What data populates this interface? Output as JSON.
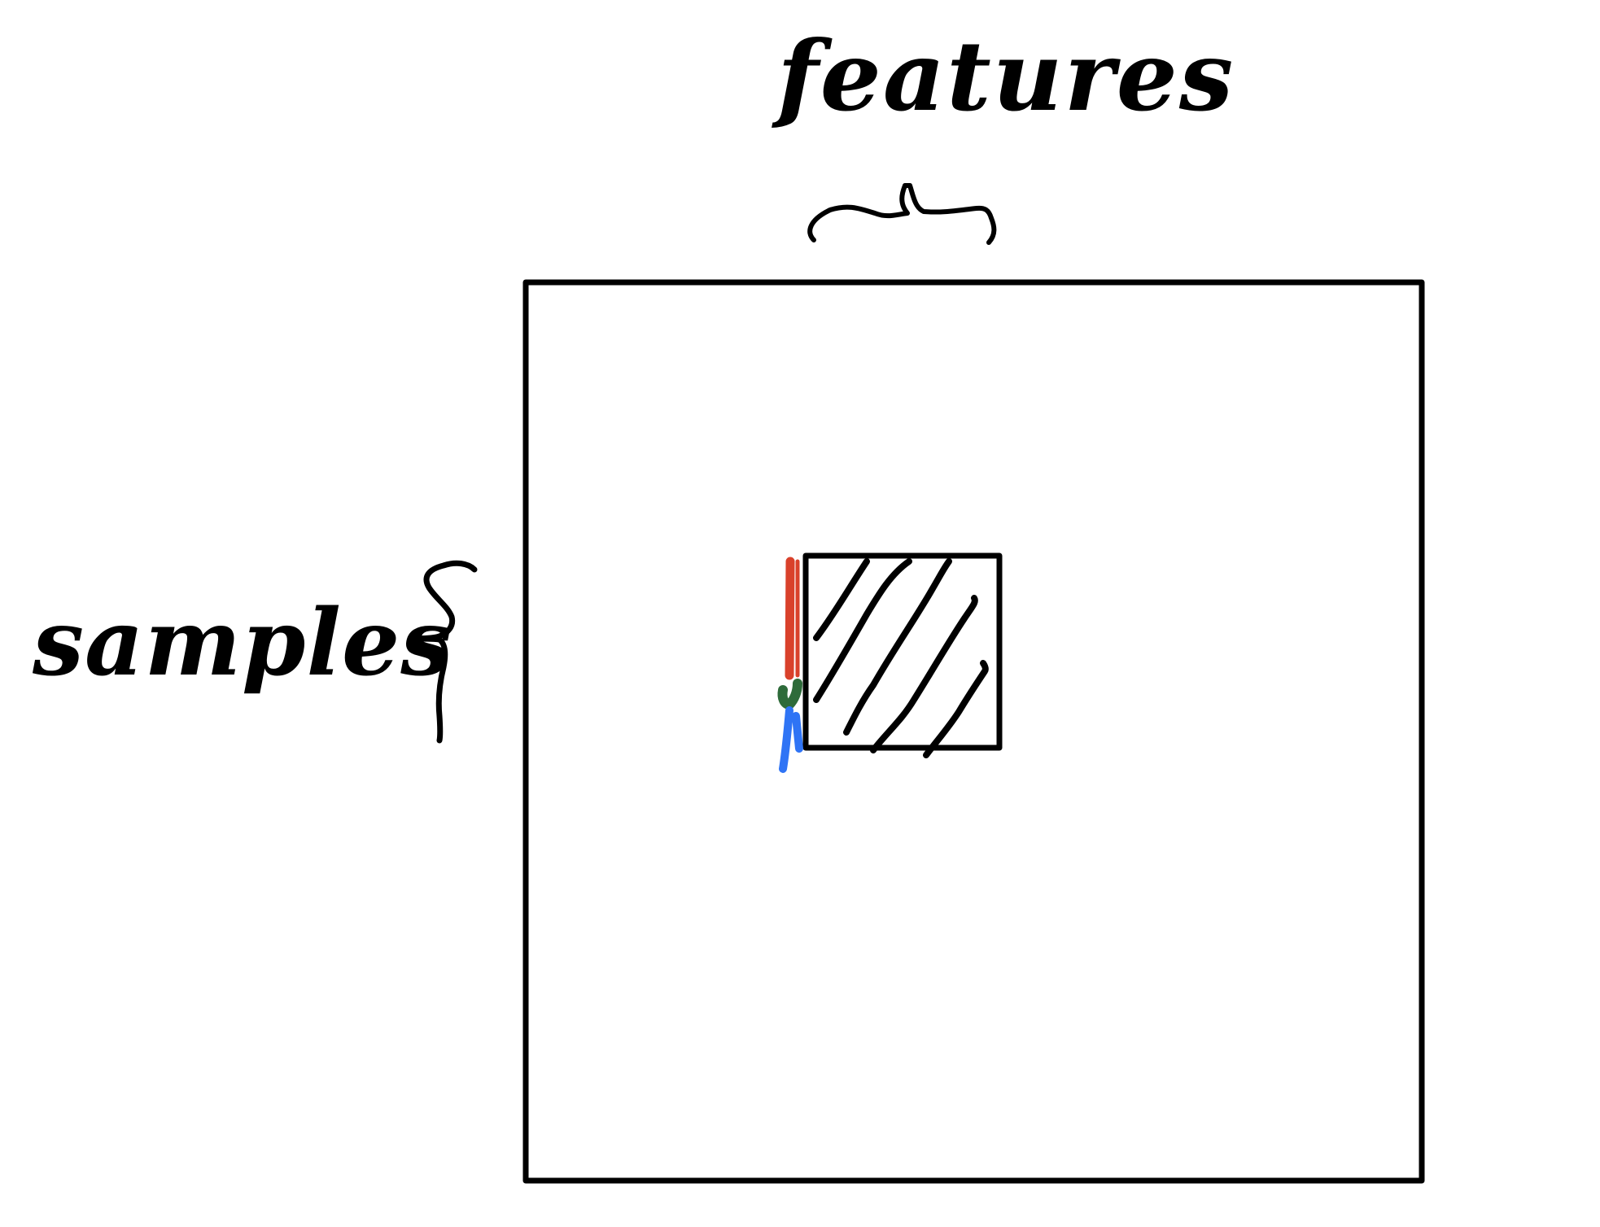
{
  "diagram": {
    "features_label": "features",
    "samples_label": "samples",
    "colors": {
      "ink": "#000000",
      "background": "#ffffff",
      "red_bar": "#d9412b",
      "green_bar": "#2e6b3a",
      "blue_bar": "#2f74f5"
    },
    "elements": {
      "outer_matrix": "matrix-box",
      "inner_block": "hatched-submatrix",
      "features_brace": "horizontal-brace",
      "samples_brace": "vertical-brace",
      "color_strip": "red-green-blue-column-strip"
    }
  }
}
